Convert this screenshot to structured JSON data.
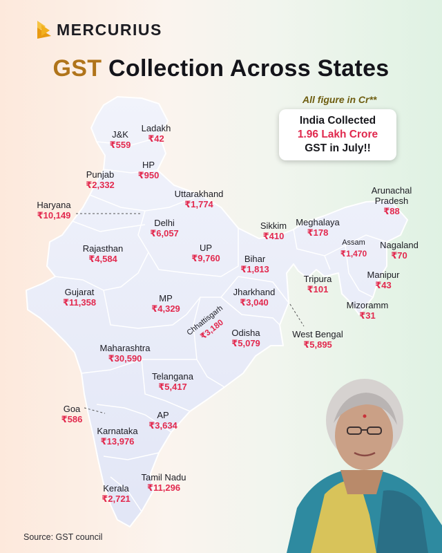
{
  "brand": {
    "name": "MERCURIUS",
    "logo_icon": "chevron-logo-icon",
    "accent": "#f2b01e"
  },
  "title": {
    "accent_part": "GST",
    "rest": "Collection Across States"
  },
  "note": "All figure in Cr**",
  "callout": {
    "line1": "India Collected",
    "line2": "1.96 Lakh Crore",
    "line3_bold": "GST",
    "line3_rest": "in July!!"
  },
  "colors": {
    "value": "#e2294e",
    "title_accent": "#b0741a",
    "map_fill": "#e9ecf9",
    "note": "#6e5d10"
  },
  "states": [
    {
      "name": "J&K",
      "value": "₹559"
    },
    {
      "name": "Ladakh",
      "value": "₹42"
    },
    {
      "name": "HP",
      "value": "₹950"
    },
    {
      "name": "Punjab",
      "value": "₹2,332"
    },
    {
      "name": "Uttarakhand",
      "value": "₹1,774"
    },
    {
      "name": "Haryana",
      "value": "₹10,149"
    },
    {
      "name": "Delhi",
      "value": "₹6,057"
    },
    {
      "name": "Rajasthan",
      "value": "₹4,584"
    },
    {
      "name": "UP",
      "value": "₹9,760"
    },
    {
      "name": "Bihar",
      "value": "₹1,813"
    },
    {
      "name": "Sikkim",
      "value": "₹410"
    },
    {
      "name": "Meghalaya",
      "value": "₹178"
    },
    {
      "name": "Arunachal Pradesh",
      "value": "₹88"
    },
    {
      "name": "Assam",
      "value": "₹1,470"
    },
    {
      "name": "Nagaland",
      "value": "₹70"
    },
    {
      "name": "Gujarat",
      "value": "₹11,358"
    },
    {
      "name": "MP",
      "value": "₹4,329"
    },
    {
      "name": "Jharkhand",
      "value": "₹3,040"
    },
    {
      "name": "Tripura",
      "value": "₹101"
    },
    {
      "name": "Manipur",
      "value": "₹43"
    },
    {
      "name": "Chhattisgarh",
      "value": "₹3,180"
    },
    {
      "name": "Odisha",
      "value": "₹5,079"
    },
    {
      "name": "West Bengal",
      "value": "₹5,895"
    },
    {
      "name": "Mizoramm",
      "value": "₹31"
    },
    {
      "name": "Maharashtra",
      "value": "₹30,590"
    },
    {
      "name": "Telangana",
      "value": "₹5,417"
    },
    {
      "name": "Goa",
      "value": "₹586"
    },
    {
      "name": "AP",
      "value": "₹3,634"
    },
    {
      "name": "Karnataka",
      "value": "₹13,976"
    },
    {
      "name": "Tamil Nadu",
      "value": "₹11,296"
    },
    {
      "name": "Kerala",
      "value": "₹2,721"
    }
  ],
  "source": "Source: GST council",
  "photo": {
    "icon": "minister-portrait-icon"
  }
}
